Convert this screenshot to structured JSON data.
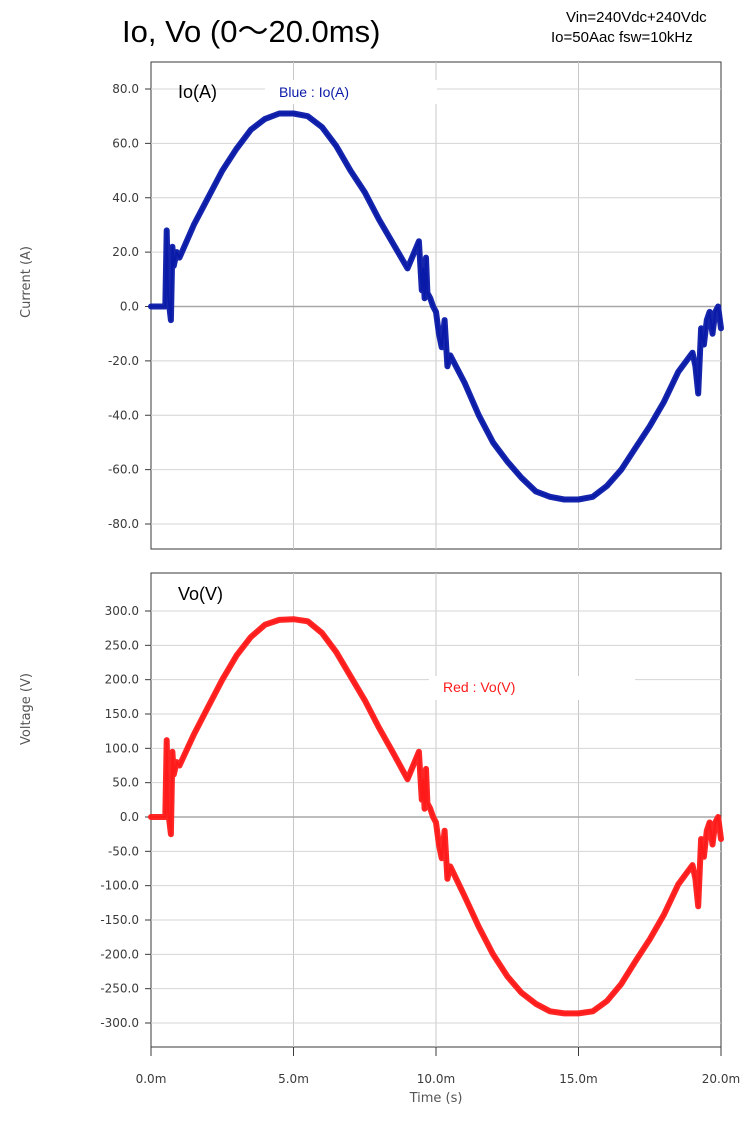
{
  "header": {
    "title": "Io, Vo (0〜20.0ms)",
    "conditions_line1": "Vin=240Vdc+240Vdc",
    "conditions_line2": "Io=50Aac fsw=10kHz"
  },
  "chart_data": [
    {
      "type": "line",
      "panel_label": "Io(A)",
      "legend": "Blue : Io(A)",
      "xlabel": "Time (s)",
      "ylabel": "Current (A)",
      "xlim": [
        0,
        20.0
      ],
      "ylim": [
        -85,
        85
      ],
      "yticks": [
        "80.0",
        "60.0",
        "40.0",
        "20.0",
        "0.0",
        "-20.0",
        "-40.0",
        "-60.0",
        "-80.0"
      ],
      "ytick_values": [
        80,
        60,
        40,
        20,
        0,
        -20,
        -40,
        -60,
        -80
      ],
      "grid": true,
      "series": [
        {
          "name": "Io(A)",
          "color": "#0a1aa8",
          "x": [
            0,
            0.4,
            0.5,
            0.55,
            0.6,
            0.7,
            0.75,
            0.8,
            0.9,
            1.0,
            1.5,
            2.0,
            2.5,
            3.0,
            3.5,
            4.0,
            4.5,
            5.0,
            5.5,
            6.0,
            6.5,
            7.0,
            7.5,
            8.0,
            8.5,
            9.0,
            9.4,
            9.5,
            9.55,
            9.6,
            9.65,
            9.7,
            9.8,
            9.9,
            10.0,
            10.1,
            10.2,
            10.3,
            10.4,
            10.5,
            11.0,
            11.5,
            12.0,
            12.5,
            13.0,
            13.5,
            14.0,
            14.5,
            15.0,
            15.5,
            16.0,
            16.5,
            17.0,
            17.5,
            18.0,
            18.5,
            19.0,
            19.1,
            19.2,
            19.3,
            19.4,
            19.5,
            19.6,
            19.7,
            19.8,
            19.9,
            20.0
          ],
          "y": [
            0,
            0,
            0,
            28,
            4,
            -5,
            22,
            15,
            20,
            18,
            30,
            40,
            50,
            58,
            65,
            69,
            71,
            71,
            70,
            66,
            59,
            50,
            42,
            32,
            23,
            14,
            24,
            6,
            14,
            3,
            18,
            5,
            3,
            0,
            -2,
            -10,
            -15,
            -5,
            -22,
            -18,
            -28,
            -40,
            -50,
            -57,
            -63,
            -68,
            -70,
            -71,
            -71,
            -70,
            -66,
            -60,
            -52,
            -44,
            -35,
            -24,
            -17,
            -22,
            -32,
            -8,
            -14,
            -5,
            -2,
            -10,
            -2,
            0,
            -8
          ]
        }
      ]
    },
    {
      "type": "line",
      "panel_label": "Vo(V)",
      "legend": "Red : Vo(V)",
      "xlabel": "Time (s)",
      "ylabel": "Voltage (V)",
      "xlim": [
        0,
        20.0
      ],
      "ylim": [
        -340,
        310
      ],
      "yticks": [
        "300.0",
        "250.0",
        "200.0",
        "150.0",
        "100.0",
        "50.0",
        "0.0",
        "-50.0",
        "-100.0",
        "-150.0",
        "-200.0",
        "-250.0",
        "-300.0"
      ],
      "ytick_values": [
        300,
        250,
        200,
        150,
        100,
        50,
        0,
        -50,
        -100,
        -150,
        -200,
        -250,
        -300
      ],
      "xticks": [
        "0.0m",
        "5.0m",
        "10.0m",
        "15.0m",
        "20.0m"
      ],
      "xtick_values": [
        0,
        5,
        10,
        15,
        20
      ],
      "grid": true,
      "series": [
        {
          "name": "Vo(V)",
          "color": "#ff1a1a",
          "x": [
            0,
            0.4,
            0.5,
            0.55,
            0.6,
            0.7,
            0.75,
            0.8,
            0.9,
            1.0,
            1.5,
            2.0,
            2.5,
            3.0,
            3.5,
            4.0,
            4.5,
            5.0,
            5.5,
            6.0,
            6.5,
            7.0,
            7.5,
            8.0,
            8.5,
            9.0,
            9.4,
            9.5,
            9.55,
            9.6,
            9.65,
            9.7,
            9.8,
            9.9,
            10.0,
            10.1,
            10.2,
            10.3,
            10.4,
            10.5,
            11.0,
            11.5,
            12.0,
            12.5,
            13.0,
            13.5,
            14.0,
            14.5,
            15.0,
            15.5,
            16.0,
            16.5,
            17.0,
            17.5,
            18.0,
            18.5,
            19.0,
            19.1,
            19.2,
            19.3,
            19.4,
            19.5,
            19.6,
            19.7,
            19.8,
            19.9,
            20.0
          ],
          "y": [
            0,
            0,
            0,
            112,
            10,
            -25,
            95,
            62,
            80,
            75,
            120,
            160,
            200,
            235,
            262,
            280,
            287,
            288,
            285,
            268,
            240,
            205,
            170,
            130,
            93,
            55,
            95,
            25,
            55,
            12,
            70,
            20,
            12,
            0,
            -8,
            -40,
            -60,
            -20,
            -90,
            -72,
            -115,
            -160,
            -200,
            -232,
            -256,
            -272,
            -283,
            -286,
            -286,
            -283,
            -268,
            -243,
            -210,
            -178,
            -142,
            -98,
            -70,
            -90,
            -130,
            -32,
            -58,
            -20,
            -8,
            -40,
            -8,
            0,
            -32
          ]
        }
      ]
    }
  ]
}
